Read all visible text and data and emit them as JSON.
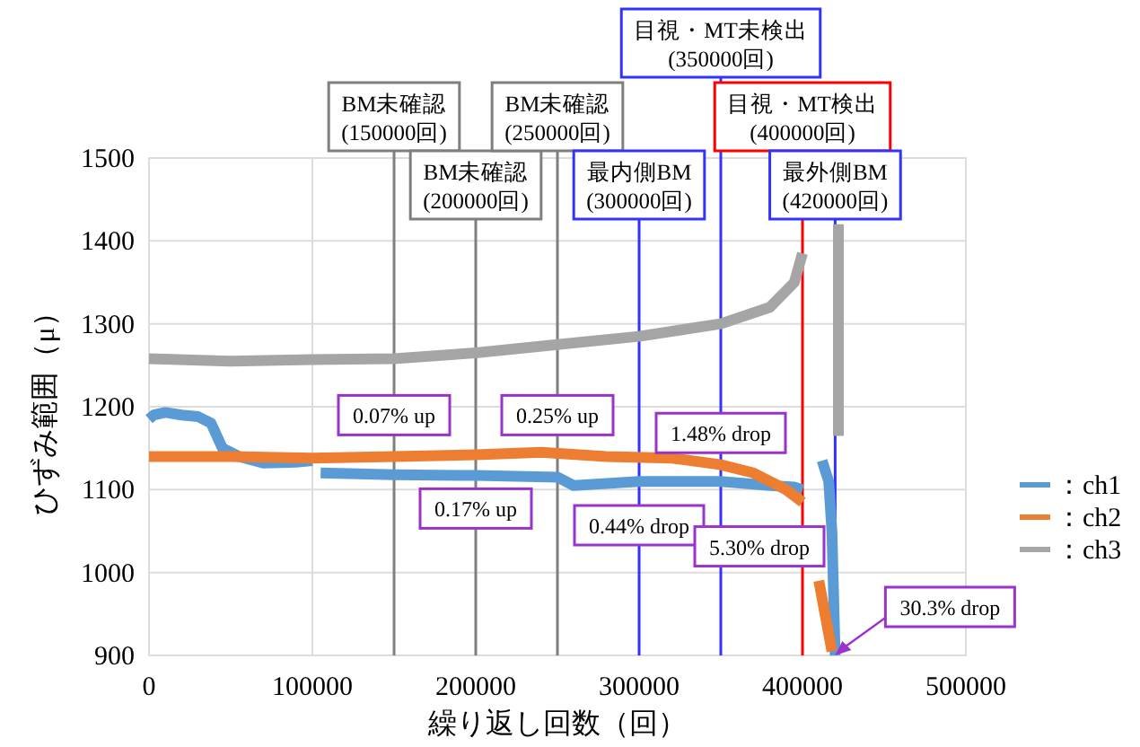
{
  "chart_data": {
    "type": "line",
    "xlabel": "繰り返し回数（回）",
    "ylabel": "ひずみ範囲（μ）",
    "xlim": [
      0,
      500000
    ],
    "ylim": [
      900,
      1500
    ],
    "xticks": [
      0,
      100000,
      200000,
      300000,
      400000,
      500000
    ],
    "yticks": [
      900,
      1000,
      1100,
      1200,
      1300,
      1400,
      1500
    ],
    "grid": true,
    "legend": "right",
    "marker": "none",
    "line_style": "solid",
    "series": [
      {
        "name": "：ch1",
        "color": "#5b9bd5",
        "x": [
          0,
          3000,
          10000,
          20000,
          30000,
          38000,
          45000,
          55000,
          70000,
          90000,
          100000,
          102000,
          105000,
          150000,
          200000,
          250000,
          260000,
          300000,
          350000,
          380000,
          395000,
          400000,
          405000,
          412000,
          416000,
          418000,
          420000
        ],
        "values": [
          1185,
          1190,
          1193,
          1190,
          1188,
          1180,
          1150,
          1140,
          1132,
          1133,
          1135,
          null,
          1120,
          1118,
          1117,
          1115,
          1105,
          1110,
          1110,
          1105,
          1103,
          1100,
          null,
          1135,
          1110,
          1050,
          900
        ]
      },
      {
        "name": "：ch2",
        "color": "#ed7d31",
        "x": [
          0,
          50000,
          100000,
          150000,
          200000,
          240000,
          280000,
          320000,
          350000,
          370000,
          390000,
          400000,
          405000,
          410000,
          418000
        ],
        "values": [
          1140,
          1140,
          1138,
          1140,
          1142,
          1145,
          1140,
          1138,
          1130,
          1120,
          1100,
          1085,
          null,
          990,
          905
        ]
      },
      {
        "name": "：ch3",
        "color": "#a5a5a5",
        "x": [
          0,
          50000,
          100000,
          150000,
          200000,
          250000,
          300000,
          350000,
          380000,
          395000,
          400000,
          410000,
          422000,
          422000
        ],
        "values": [
          1258,
          1255,
          1257,
          1258,
          1265,
          1275,
          1285,
          1300,
          1320,
          1350,
          1385,
          null,
          1420,
          1165
        ]
      }
    ],
    "ref_lines": [
      {
        "axis": "x",
        "value": 150000,
        "label": "BM未確認\n(150000回)",
        "color": "#7f7f7f"
      },
      {
        "axis": "x",
        "value": 200000,
        "label": "BM未確認\n(200000回)",
        "color": "#7f7f7f"
      },
      {
        "axis": "x",
        "value": 250000,
        "label": "BM未確認\n(250000回)",
        "color": "#7f7f7f"
      },
      {
        "axis": "x",
        "value": 300000,
        "label": "最内側BM\n(300000回)",
        "color": "#3333ff"
      },
      {
        "axis": "x",
        "value": 350000,
        "label": "目視・MT未検出\n(350000回)",
        "color": "#3333ff"
      },
      {
        "axis": "x",
        "value": 400000,
        "label": "目視・MT検出\n(400000回)",
        "color": "#ff0000"
      },
      {
        "axis": "x",
        "value": 420000,
        "label": "最外側BM\n(420000回)",
        "color": "#3333ff"
      }
    ],
    "annotations": [
      {
        "text": "0.07% up",
        "x": 150000,
        "y": 1140
      },
      {
        "text": "0.17% up",
        "x": 200000,
        "y": 1140
      },
      {
        "text": "0.25% up",
        "x": 250000,
        "y": 1140
      },
      {
        "text": "0.44% drop",
        "x": 300000,
        "y": 1135
      },
      {
        "text": "1.48% drop",
        "x": 350000,
        "y": 1125
      },
      {
        "text": "5.30% drop",
        "x": 400000,
        "y": 1090
      },
      {
        "text": "30.3% drop",
        "x": 420000,
        "y": 900
      }
    ]
  }
}
